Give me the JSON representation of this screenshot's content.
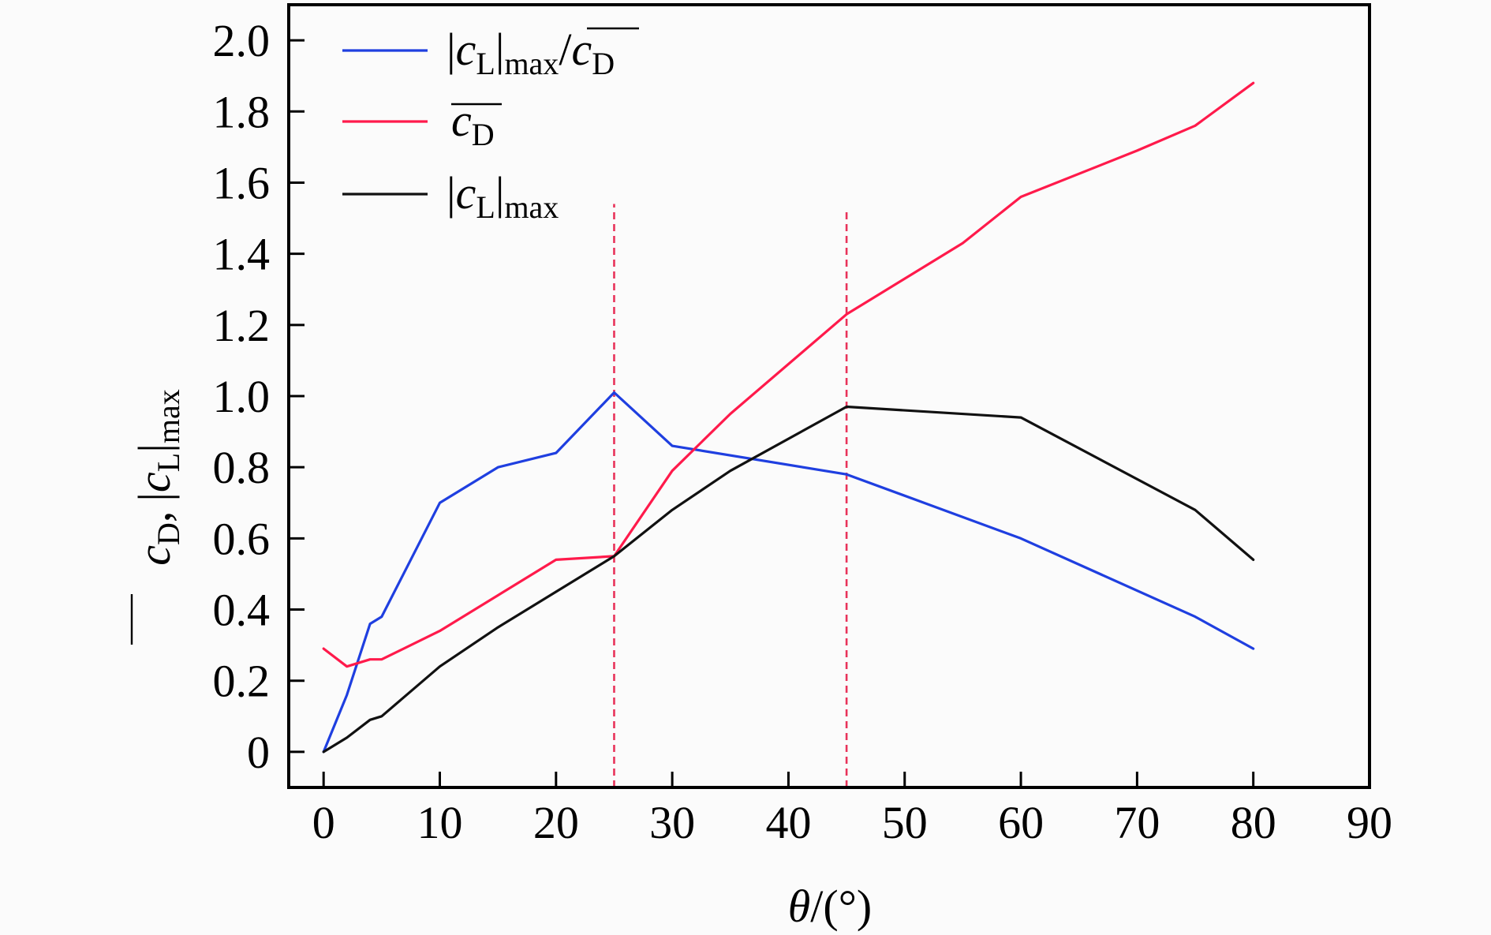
{
  "chart_data": {
    "type": "line",
    "xlabel": {
      "symbol": "θ",
      "unit": "/(°)"
    },
    "ylabel": {
      "part1_main": "c",
      "part1_sub": "D",
      "separator": ",",
      "part2_main": "c",
      "part2_sub": "L",
      "part2_sub2": "max"
    },
    "xlim": [
      -3,
      90
    ],
    "ylim": [
      -0.1,
      2.1
    ],
    "xticks": [
      0,
      10,
      20,
      30,
      40,
      50,
      60,
      70,
      80,
      90
    ],
    "xtick_labels": [
      "0",
      "10",
      "20",
      "30",
      "40",
      "50",
      "60",
      "70",
      "80",
      "90"
    ],
    "yticks": [
      0,
      0.2,
      0.4,
      0.6,
      0.8,
      1.0,
      1.2,
      1.4,
      1.6,
      1.8,
      2.0
    ],
    "ytick_labels": [
      "0",
      "0.2",
      "0.4",
      "0.6",
      "0.8",
      "1.0",
      "1.2",
      "1.4",
      "1.6",
      "1.8",
      "2.0"
    ],
    "reference_lines": [
      {
        "x": 25,
        "y_from": -0.1,
        "y_to": 1.54,
        "color": "#e8335a"
      },
      {
        "x": 45,
        "y_from": -0.1,
        "y_to": 1.53,
        "color": "#e8335a"
      }
    ],
    "legend_position": "top-left",
    "series": [
      {
        "legend_key": "ratio",
        "color": "#1f3fe0",
        "x": [
          0,
          2,
          4,
          5,
          10,
          15,
          20,
          25,
          30,
          45,
          60,
          75,
          80
        ],
        "y": [
          0.0,
          0.16,
          0.36,
          0.38,
          0.7,
          0.8,
          0.84,
          1.01,
          0.86,
          0.78,
          0.6,
          0.38,
          0.29
        ]
      },
      {
        "legend_key": "cd",
        "color": "#ff1a4b",
        "x": [
          0,
          2,
          4,
          5,
          10,
          15,
          20,
          25,
          30,
          35,
          45,
          55,
          60,
          70,
          75,
          80
        ],
        "y": [
          0.29,
          0.24,
          0.26,
          0.26,
          0.34,
          0.44,
          0.54,
          0.55,
          0.79,
          0.95,
          1.23,
          1.43,
          1.56,
          1.69,
          1.76,
          1.88
        ]
      },
      {
        "legend_key": "cl",
        "color": "#111111",
        "x": [
          0,
          2,
          4,
          5,
          10,
          15,
          20,
          25,
          30,
          35,
          45,
          60,
          75,
          80
        ],
        "y": [
          0.0,
          0.04,
          0.09,
          0.1,
          0.24,
          0.35,
          0.45,
          0.55,
          0.68,
          0.79,
          0.97,
          0.94,
          0.68,
          0.54
        ]
      }
    ],
    "legend": {
      "ratio": {
        "a_main": "c",
        "a_sub": "L",
        "a_sub2": "max",
        "slash": "/",
        "b_main": "c",
        "b_sub": "D"
      },
      "cd": {
        "main": "c",
        "sub": "D"
      },
      "cl": {
        "main": "c",
        "sub": "L",
        "sub2": "max"
      }
    },
    "frame_color": "#000000",
    "background": "#fbfbfb"
  }
}
